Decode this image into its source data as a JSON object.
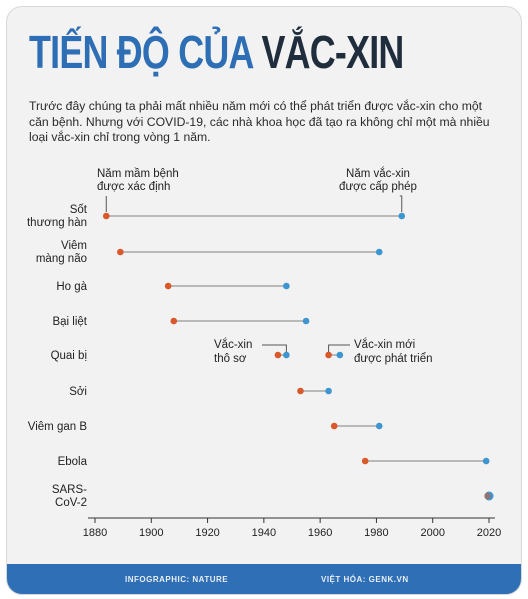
{
  "title_part1": "TIẾN ĐỘ CỦA",
  "title_part2": "VẮC-XIN",
  "description": "Trước đây chúng ta phải mất nhiều năm mới có thể phát triển được vắc-xin cho một căn bệnh. Nhưng với COVID-19, các nhà khoa học đã tạo ra không chỉ một mà nhiều loại vắc-xin chỉ trong vòng 1 năm.",
  "annotations": {
    "identified_line1": "Năm mầm bệnh",
    "identified_line2": "được xác định",
    "licensed_line1": "Năm vắc-xin",
    "licensed_line2": "được cấp phép",
    "crude_line1": "Vắc-xin",
    "crude_line2": "thô sơ",
    "new_line1": "Vắc-xin mới",
    "new_line2": "được phát triển"
  },
  "footer": {
    "left": "INFOGRAPHIC: NATURE",
    "right": "VIỆT HÓA: GENK.VN"
  },
  "colors": {
    "title_blue": "#2d6eb4",
    "title_dark": "#1f2d3d",
    "identified": "#d9592b",
    "licensed": "#3d96cf",
    "connector": "#b9b9b9",
    "footer_bg": "#2f6fb5"
  },
  "chart_data": {
    "type": "dumbbell",
    "xlim": [
      1880,
      2020
    ],
    "x_ticks": [
      1880,
      1900,
      1920,
      1940,
      1960,
      1980,
      2000,
      2020
    ],
    "series": [
      {
        "name": "Năm mầm bệnh được xác định",
        "color": "#d9592b"
      },
      {
        "name": "Năm vắc-xin được cấp phép",
        "color": "#3d96cf"
      }
    ],
    "rows": [
      {
        "label": [
          "Sốt",
          "thương hàn"
        ],
        "identified": 1884,
        "licensed": 1989
      },
      {
        "label": [
          "Viêm",
          "màng não"
        ],
        "identified": 1889,
        "licensed": 1981
      },
      {
        "label": [
          "Ho gà"
        ],
        "identified": 1906,
        "licensed": 1948
      },
      {
        "label": [
          "Bại liệt"
        ],
        "identified": 1908,
        "licensed": 1955
      },
      {
        "label": [
          "Quai bị"
        ],
        "segments": [
          {
            "identified": 1945,
            "licensed": 1948
          },
          {
            "identified": 1963,
            "licensed": 1967
          }
        ]
      },
      {
        "label": [
          "Sởi"
        ],
        "identified": 1953,
        "licensed": 1963
      },
      {
        "label": [
          "Viêm gan B"
        ],
        "identified": 1965,
        "licensed": 1981
      },
      {
        "label": [
          "Ebola"
        ],
        "identified": 1976,
        "licensed": 2019
      },
      {
        "label": [
          "SARS-",
          "CoV-2"
        ],
        "identified": 2020,
        "licensed": 2020
      }
    ]
  }
}
